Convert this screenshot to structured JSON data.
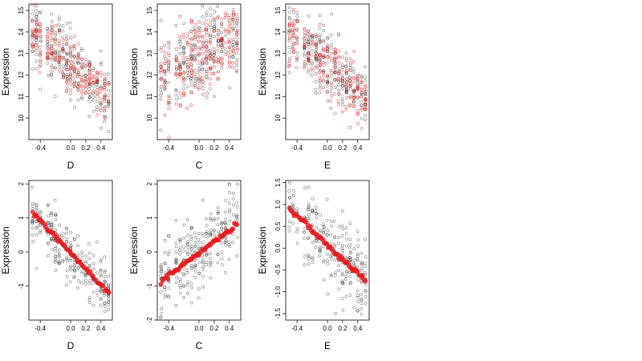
{
  "chart_data": [
    {
      "type": "scatter",
      "panel": "top-left",
      "xlabel": "D",
      "ylabel": "Expression",
      "xlim": [
        -0.55,
        0.55
      ],
      "ylim": [
        9.0,
        15.3
      ],
      "xticks": [
        -0.4,
        0.0,
        0.2,
        0.4
      ],
      "xtick_labels": [
        "-0.4",
        "0.0",
        "0.2",
        "0.4"
      ],
      "yticks": [
        10,
        11,
        12,
        13,
        14,
        15
      ],
      "ytick_labels": [
        "10",
        "11",
        "12",
        "13",
        "14",
        "15"
      ],
      "series": [
        {
          "color": "#000000",
          "marker": "open-circle",
          "trend": {
            "x": [
              -0.5,
              0.5
            ],
            "y": [
              13.9,
              11.0
            ]
          },
          "spread": 0.8,
          "count": 260,
          "seed": 11
        },
        {
          "color": "#e41a1c",
          "marker": "open-circle-translucent",
          "trend": {
            "x": [
              -0.5,
              0.5
            ],
            "y": [
              13.9,
              11.0
            ]
          },
          "spread": 0.55,
          "count": 200,
          "seed": 12
        }
      ],
      "grid": false,
      "legend": "none"
    },
    {
      "type": "scatter",
      "panel": "top-middle",
      "xlabel": "C",
      "ylabel": "Expression",
      "xlim": [
        -0.55,
        0.55
      ],
      "ylim": [
        9.0,
        15.3
      ],
      "xticks": [
        -0.4,
        0.0,
        0.2,
        0.4
      ],
      "xtick_labels": [
        "-0.4",
        "0.0",
        "0.2",
        "0.4"
      ],
      "yticks": [
        10,
        11,
        12,
        13,
        14,
        15
      ],
      "ytick_labels": [
        "10",
        "11",
        "12",
        "13",
        "14",
        "15"
      ],
      "series": [
        {
          "color": "#000000",
          "marker": "open-circle",
          "trend": {
            "x": [
              -0.5,
              0.5
            ],
            "y": [
              11.9,
              13.9
            ]
          },
          "spread": 1.0,
          "count": 260,
          "seed": 21
        },
        {
          "color": "#e41a1c",
          "marker": "open-circle-translucent",
          "trend": {
            "x": [
              -0.5,
              0.5
            ],
            "y": [
              11.9,
              13.9
            ]
          },
          "spread": 0.9,
          "count": 220,
          "seed": 22
        }
      ],
      "grid": false,
      "legend": "none"
    },
    {
      "type": "scatter",
      "panel": "top-right",
      "xlabel": "E",
      "ylabel": "Expression",
      "xlim": [
        -0.55,
        0.55
      ],
      "ylim": [
        9.0,
        15.3
      ],
      "xticks": [
        -0.4,
        0.0,
        0.2,
        0.4
      ],
      "xtick_labels": [
        "-0.4",
        "0.0",
        "0.2",
        "0.4"
      ],
      "yticks": [
        10,
        11,
        12,
        13,
        14,
        15
      ],
      "ytick_labels": [
        "10",
        "11",
        "12",
        "13",
        "14",
        "15"
      ],
      "series": [
        {
          "color": "#000000",
          "marker": "open-circle",
          "trend": {
            "x": [
              -0.5,
              0.5
            ],
            "y": [
              14.0,
              11.0
            ]
          },
          "spread": 0.8,
          "count": 260,
          "seed": 31
        },
        {
          "color": "#e41a1c",
          "marker": "open-circle-translucent",
          "trend": {
            "x": [
              -0.5,
              0.5
            ],
            "y": [
              14.0,
              11.0
            ]
          },
          "spread": 0.7,
          "count": 200,
          "seed": 32
        }
      ],
      "grid": false,
      "legend": "none"
    },
    {
      "type": "scatter",
      "panel": "bottom-left",
      "xlabel": "D",
      "ylabel": "Expression",
      "xlim": [
        -0.55,
        0.55
      ],
      "ylim": [
        -2.0,
        2.1
      ],
      "xticks": [
        -0.4,
        0.0,
        0.2,
        0.4
      ],
      "xtick_labels": [
        "-0.4",
        "0.0",
        "0.2",
        "0.4"
      ],
      "yticks": [
        -1,
        0,
        1,
        2
      ],
      "ytick_labels": [
        "-1",
        "0",
        "1",
        "2"
      ],
      "series": [
        {
          "color": "#000000",
          "marker": "open-circle",
          "trend": {
            "x": [
              -0.5,
              0.5
            ],
            "y": [
              1.15,
              -1.2
            ]
          },
          "spread": 0.45,
          "count": 260,
          "seed": 41
        },
        {
          "color": "#e41a1c",
          "marker": "filled-circle",
          "trend": {
            "x": [
              -0.5,
              0.5
            ],
            "y": [
              1.15,
              -1.2
            ]
          },
          "spread": 0.03,
          "count": 60,
          "seed": 42
        }
      ],
      "grid": false,
      "legend": "none"
    },
    {
      "type": "scatter",
      "panel": "bottom-middle",
      "xlabel": "C",
      "ylabel": "Expression",
      "xlim": [
        -0.55,
        0.55
      ],
      "ylim": [
        -2.0,
        2.1
      ],
      "xticks": [
        -0.4,
        0.0,
        0.2,
        0.4
      ],
      "xtick_labels": [
        "-0.4",
        "0.0",
        "0.2",
        "0.4"
      ],
      "yticks": [
        -2,
        -1,
        0,
        1,
        2
      ],
      "ytick_labels": [
        "-2",
        "-1",
        "0",
        "1",
        "2"
      ],
      "series": [
        {
          "color": "#000000",
          "marker": "open-circle",
          "trend": {
            "x": [
              -0.5,
              0.5
            ],
            "y": [
              -0.85,
              0.8
            ]
          },
          "spread": 0.55,
          "count": 260,
          "seed": 51
        },
        {
          "color": "#e41a1c",
          "marker": "filled-circle",
          "trend": {
            "x": [
              -0.5,
              0.5
            ],
            "y": [
              -0.85,
              0.8
            ]
          },
          "spread": 0.03,
          "count": 60,
          "seed": 52
        }
      ],
      "grid": false,
      "legend": "none"
    },
    {
      "type": "scatter",
      "panel": "bottom-right",
      "xlabel": "E",
      "ylabel": "Expression",
      "xlim": [
        -0.55,
        0.55
      ],
      "ylim": [
        -1.65,
        1.55
      ],
      "xticks": [
        -0.4,
        0.0,
        0.2,
        0.4
      ],
      "xtick_labels": [
        "-0.4",
        "0.0",
        "0.2",
        "0.4"
      ],
      "yticks": [
        -1.5,
        -1.0,
        -0.5,
        0.0,
        0.5,
        1.0,
        1.5
      ],
      "ytick_labels": [
        "-1.5",
        "-1.0",
        "-0.5",
        "0.0",
        "0.5",
        "1.0",
        "1.5"
      ],
      "series": [
        {
          "color": "#000000",
          "marker": "open-circle",
          "trend": {
            "x": [
              -0.5,
              0.5
            ],
            "y": [
              0.9,
              -0.75
            ]
          },
          "spread": 0.45,
          "count": 260,
          "seed": 61
        },
        {
          "color": "#e41a1c",
          "marker": "filled-circle",
          "trend": {
            "x": [
              -0.5,
              0.5
            ],
            "y": [
              0.9,
              -0.75
            ]
          },
          "spread": 0.03,
          "count": 60,
          "seed": 62
        }
      ],
      "grid": false,
      "legend": "none"
    }
  ]
}
